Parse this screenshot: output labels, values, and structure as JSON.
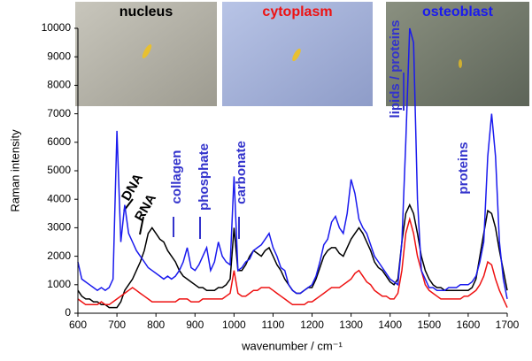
{
  "chart_data": {
    "type": "line",
    "x": [
      600,
      610,
      620,
      630,
      640,
      650,
      660,
      670,
      680,
      690,
      700,
      710,
      720,
      730,
      740,
      750,
      760,
      770,
      780,
      790,
      800,
      810,
      820,
      830,
      840,
      850,
      860,
      870,
      880,
      890,
      900,
      910,
      920,
      930,
      940,
      950,
      960,
      970,
      980,
      990,
      1000,
      1010,
      1020,
      1030,
      1040,
      1050,
      1060,
      1070,
      1080,
      1090,
      1100,
      1110,
      1120,
      1130,
      1140,
      1150,
      1160,
      1170,
      1180,
      1190,
      1200,
      1210,
      1220,
      1230,
      1240,
      1250,
      1260,
      1270,
      1280,
      1290,
      1300,
      1310,
      1320,
      1330,
      1340,
      1350,
      1360,
      1370,
      1380,
      1390,
      1400,
      1410,
      1420,
      1430,
      1440,
      1450,
      1460,
      1470,
      1480,
      1490,
      1500,
      1510,
      1520,
      1530,
      1540,
      1550,
      1560,
      1570,
      1580,
      1590,
      1600,
      1610,
      1620,
      1630,
      1640,
      1650,
      1660,
      1670,
      1680,
      1690,
      1700
    ],
    "series": [
      {
        "name": "nucleus",
        "color": "#000000",
        "values": [
          800,
          600,
          500,
          500,
          400,
          400,
          300,
          300,
          200,
          200,
          200,
          400,
          800,
          1000,
          1200,
          1500,
          1800,
          2200,
          2800,
          3000,
          2800,
          2600,
          2500,
          2200,
          2000,
          1800,
          1500,
          1300,
          1200,
          1100,
          1000,
          900,
          900,
          800,
          800,
          800,
          900,
          900,
          1000,
          1200,
          3000,
          1500,
          1500,
          1700,
          2000,
          2200,
          2100,
          2000,
          2200,
          2300,
          2000,
          1700,
          1500,
          1200,
          1000,
          800,
          700,
          700,
          800,
          900,
          900,
          1200,
          1600,
          2000,
          2200,
          2300,
          2300,
          2100,
          2000,
          2300,
          2600,
          2800,
          3000,
          2800,
          2500,
          2200,
          1800,
          1600,
          1500,
          1300,
          1100,
          1000,
          1200,
          2500,
          3500,
          3800,
          3500,
          2800,
          2000,
          1500,
          1200,
          1000,
          900,
          900,
          800,
          800,
          800,
          800,
          800,
          800,
          800,
          900,
          1200,
          2000,
          2800,
          3600,
          3500,
          3000,
          2200,
          1500,
          800
        ]
      },
      {
        "name": "cytoplasm",
        "color": "#ee1111",
        "values": [
          500,
          400,
          300,
          300,
          300,
          300,
          400,
          300,
          300,
          400,
          500,
          600,
          700,
          800,
          900,
          800,
          700,
          600,
          500,
          400,
          400,
          400,
          400,
          400,
          400,
          400,
          500,
          500,
          500,
          400,
          400,
          400,
          500,
          500,
          500,
          500,
          500,
          500,
          600,
          700,
          1500,
          700,
          600,
          600,
          700,
          800,
          800,
          900,
          900,
          900,
          800,
          700,
          600,
          500,
          400,
          300,
          300,
          300,
          300,
          400,
          400,
          500,
          600,
          700,
          800,
          900,
          900,
          900,
          1000,
          1100,
          1200,
          1400,
          1500,
          1300,
          1100,
          1000,
          800,
          700,
          600,
          600,
          500,
          500,
          700,
          1500,
          2800,
          3300,
          2800,
          2000,
          1500,
          1000,
          800,
          700,
          600,
          500,
          500,
          500,
          500,
          500,
          500,
          600,
          600,
          700,
          800,
          1000,
          1300,
          1800,
          1700,
          1200,
          800,
          500,
          200
        ]
      },
      {
        "name": "osteoblast",
        "color": "#1a1aee",
        "values": [
          1800,
          1200,
          1100,
          1000,
          900,
          800,
          900,
          800,
          900,
          1200,
          6400,
          2500,
          3800,
          2800,
          2500,
          2200,
          2000,
          1800,
          1600,
          1500,
          1400,
          1300,
          1200,
          1300,
          1200,
          1300,
          1500,
          1800,
          2300,
          1600,
          1500,
          1700,
          2000,
          2300,
          1500,
          1800,
          2500,
          2000,
          1800,
          1700,
          4800,
          1500,
          1600,
          1800,
          1900,
          2200,
          2300,
          2400,
          2600,
          2800,
          2300,
          2000,
          1600,
          1500,
          1000,
          800,
          700,
          700,
          800,
          900,
          1000,
          1300,
          1800,
          2400,
          2600,
          3200,
          3400,
          3000,
          2800,
          3500,
          4700,
          4200,
          3300,
          3000,
          2800,
          2400,
          2000,
          1800,
          1600,
          1400,
          1200,
          1100,
          1000,
          2500,
          6000,
          10000,
          9500,
          4000,
          1500,
          1200,
          900,
          900,
          800,
          800,
          800,
          900,
          900,
          900,
          1000,
          1000,
          1000,
          1100,
          1300,
          1800,
          2500,
          5500,
          7000,
          5500,
          2500,
          1200,
          500
        ]
      }
    ],
    "xlabel": "wavenumber / cm⁻¹",
    "ylabel": "Raman intensity",
    "annotations": [
      "DNA",
      "RNA",
      "collagen",
      "phosphate",
      "carbonate",
      "lipids / proteins",
      "proteins"
    ],
    "xlim": [
      600,
      1700
    ],
    "xticks": [
      600,
      700,
      800,
      900,
      1000,
      1100,
      1200,
      1300,
      1400,
      1500,
      1600,
      1700
    ],
    "ylim": [
      0,
      10000
    ],
    "yticks": [
      0,
      1000,
      2000,
      3000,
      4000,
      5000,
      6000,
      7000,
      8000,
      9000,
      10000
    ]
  }
}
